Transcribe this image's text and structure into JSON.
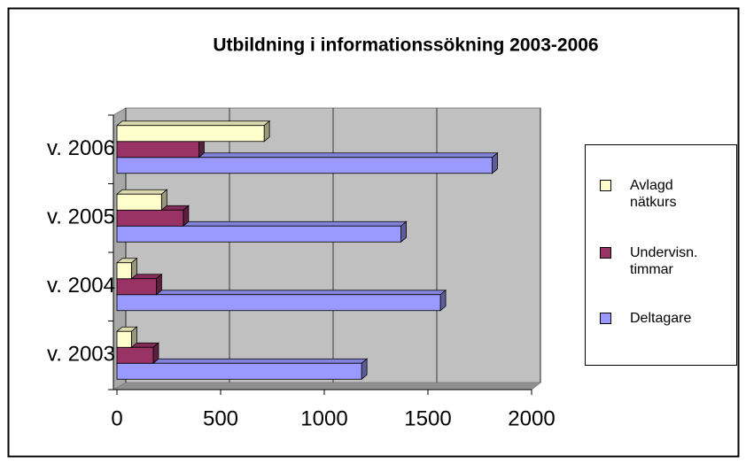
{
  "chart_data": {
    "type": "bar3d_horizontal",
    "title": "Utbildning i informationssökning 2003-2006",
    "categories": [
      "v. 2003",
      "v. 2004",
      "v. 2005",
      "v. 2006"
    ],
    "series": [
      {
        "name": "Deltagare",
        "color": "#9999ff",
        "values": [
          1180,
          1560,
          1370,
          1810
        ]
      },
      {
        "name": "Undervisn. timmar",
        "color": "#993366",
        "values": [
          175,
          190,
          320,
          395
        ]
      },
      {
        "name": "Avlagd nätkurs",
        "color": "#ffffcc",
        "values": [
          70,
          70,
          215,
          710
        ]
      }
    ],
    "xlim": [
      0,
      2000
    ],
    "xticks": [
      0,
      500,
      1000,
      1500,
      2000
    ],
    "grid": true,
    "legend": "right"
  }
}
